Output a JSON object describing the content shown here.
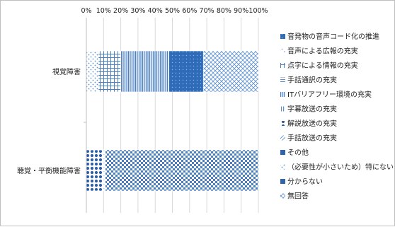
{
  "chart_data": {
    "type": "bar",
    "orientation": "horizontal",
    "stacked": "percent",
    "x_ticks": [
      "0%",
      "10%",
      "20%",
      "30%",
      "40%",
      "50%",
      "60%",
      "70%",
      "80%",
      "90%",
      "100%"
    ],
    "xlim": [
      0,
      100
    ],
    "categories": [
      "視覚障害",
      "聴覚・平衡機能障害"
    ],
    "series": [
      {
        "name": "音発物の音声コード化の推進",
        "values": [
          0,
          0
        ]
      },
      {
        "name": "音声による広報の充実",
        "values": [
          7,
          0
        ]
      },
      {
        "name": "点字による情報の充実",
        "values": [
          13,
          0
        ]
      },
      {
        "name": "手話通訳の充実",
        "values": [
          0,
          0
        ]
      },
      {
        "name": "ITバリアフリー環境の充実",
        "values": [
          28,
          0
        ]
      },
      {
        "name": "字幕放送の充実",
        "values": [
          0,
          10
        ]
      },
      {
        "name": "解説放送の充実",
        "values": [
          0,
          0
        ]
      },
      {
        "name": "手話放送の充実",
        "values": [
          20,
          0
        ]
      },
      {
        "name": "その他",
        "values": [
          0,
          1
        ]
      },
      {
        "name": "（必要性が小さいため）特にない",
        "values": [
          0,
          0
        ]
      },
      {
        "name": "分からない",
        "values": [
          0,
          0
        ]
      },
      {
        "name": "無回答",
        "values": [
          32,
          89
        ]
      }
    ],
    "legend_position": "right"
  }
}
